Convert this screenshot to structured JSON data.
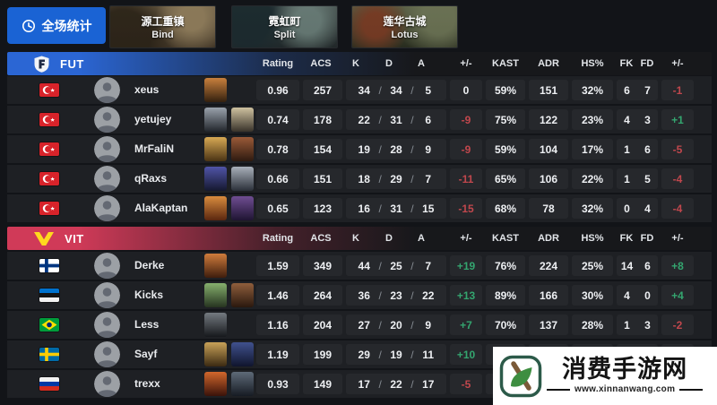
{
  "header": {
    "overall_button_label": "全场统计",
    "maps": [
      {
        "name_cn": "源工重镇",
        "name_en": "Bind"
      },
      {
        "name_cn": "霓虹町",
        "name_en": "Split"
      },
      {
        "name_cn": "莲华古城",
        "name_en": "Lotus"
      }
    ]
  },
  "columns": [
    "Rating",
    "ACS",
    "K",
    "D",
    "A",
    "+/-",
    "KAST",
    "ADR",
    "HS%",
    "FK",
    "FD",
    "+/-"
  ],
  "colors": {
    "positive": "#34a56f",
    "negative": "#c0474d",
    "neutral": "#eef0f3",
    "button_blue": "#1a63d4"
  },
  "teams": [
    {
      "name": "FUT",
      "accent": "#2b66d4",
      "logo_icon": "fut-shield-logo",
      "players": [
        {
          "name": "xeus",
          "country": "tr",
          "agents": [
            [
              "#c9803d",
              "#33200f"
            ]
          ],
          "rating": "0.96",
          "acs": "257",
          "k": "34",
          "d": "34",
          "a": "5",
          "diff": "0",
          "kast": "59%",
          "adr": "151",
          "hs": "32%",
          "fk": "6",
          "fd": "7",
          "fkfd_diff": "-1"
        },
        {
          "name": "yetujey",
          "country": "tr",
          "agents": [
            [
              "#9aa2ac",
              "#22262c"
            ],
            [
              "#cfc2a0",
              "#38322a"
            ]
          ],
          "rating": "0.74",
          "acs": "178",
          "k": "22",
          "d": "31",
          "a": "6",
          "diff": "-9",
          "kast": "75%",
          "adr": "122",
          "hs": "23%",
          "fk": "4",
          "fd": "3",
          "fkfd_diff": "+1"
        },
        {
          "name": "MrFaliN",
          "country": "tr",
          "agents": [
            [
              "#d8a954",
              "#4a3314"
            ],
            [
              "#9a5a38",
              "#2e1a10"
            ]
          ],
          "rating": "0.78",
          "acs": "154",
          "k": "19",
          "d": "28",
          "a": "9",
          "diff": "-9",
          "kast": "59%",
          "adr": "104",
          "hs": "17%",
          "fk": "1",
          "fd": "6",
          "fkfd_diff": "-5"
        },
        {
          "name": "qRaxs",
          "country": "tr",
          "agents": [
            [
              "#5054a8",
              "#15182f"
            ],
            [
              "#a9b0ba",
              "#2b3039"
            ]
          ],
          "rating": "0.66",
          "acs": "151",
          "k": "18",
          "d": "29",
          "a": "7",
          "diff": "-11",
          "kast": "65%",
          "adr": "106",
          "hs": "22%",
          "fk": "1",
          "fd": "5",
          "fkfd_diff": "-4"
        },
        {
          "name": "AlaKaptan",
          "country": "tr",
          "agents": [
            [
              "#d98c3e",
              "#5a260f"
            ],
            [
              "#6f4d92",
              "#1e1432"
            ]
          ],
          "rating": "0.65",
          "acs": "123",
          "k": "16",
          "d": "31",
          "a": "15",
          "diff": "-15",
          "kast": "68%",
          "adr": "78",
          "hs": "32%",
          "fk": "0",
          "fd": "4",
          "fkfd_diff": "-4"
        }
      ]
    },
    {
      "name": "VIT",
      "accent": "#d03a58",
      "logo_icon": "vitality-v-logo",
      "players": [
        {
          "name": "Derke",
          "country": "fi",
          "agents": [
            [
              "#d07c3c",
              "#3f1d0d"
            ]
          ],
          "rating": "1.59",
          "acs": "349",
          "k": "44",
          "d": "25",
          "a": "7",
          "diff": "+19",
          "kast": "76%",
          "adr": "224",
          "hs": "25%",
          "fk": "14",
          "fd": "6",
          "fkfd_diff": "+8"
        },
        {
          "name": "Kicks",
          "country": "ee",
          "agents": [
            [
              "#86b06d",
              "#263420"
            ],
            [
              "#8f5e3c",
              "#2a180e"
            ]
          ],
          "rating": "1.46",
          "acs": "264",
          "k": "36",
          "d": "23",
          "a": "22",
          "diff": "+13",
          "kast": "89%",
          "adr": "166",
          "hs": "30%",
          "fk": "4",
          "fd": "0",
          "fkfd_diff": "+4"
        },
        {
          "name": "Less",
          "country": "br",
          "agents": [
            [
              "#747a80",
              "#16181c"
            ]
          ],
          "rating": "1.16",
          "acs": "204",
          "k": "27",
          "d": "20",
          "a": "9",
          "diff": "+7",
          "kast": "70%",
          "adr": "137",
          "hs": "28%",
          "fk": "1",
          "fd": "3",
          "fkfd_diff": "-2"
        },
        {
          "name": "Sayf",
          "country": "se",
          "agents": [
            [
              "#c9a258",
              "#3b2a12"
            ],
            [
              "#40518e",
              "#10152d"
            ]
          ],
          "rating": "1.19",
          "acs": "199",
          "k": "29",
          "d": "19",
          "a": "11",
          "diff": "+10",
          "kast": "",
          "adr": "",
          "hs": "",
          "fk": "",
          "fd": "",
          "fkfd_diff": ""
        },
        {
          "name": "trexx",
          "country": "ru",
          "agents": [
            [
              "#d2672c",
              "#3a120a"
            ],
            [
              "#5e6a78",
              "#161b23"
            ]
          ],
          "rating": "0.93",
          "acs": "149",
          "k": "17",
          "d": "22",
          "a": "17",
          "diff": "-5",
          "kast": "",
          "adr": "",
          "hs": "",
          "fk": "",
          "fd": "",
          "fkfd_diff": ""
        }
      ]
    }
  ],
  "watermark": {
    "title": "消费手游网",
    "url": "www.xinnanwang.com",
    "logo": "leaf-stick-logo"
  }
}
